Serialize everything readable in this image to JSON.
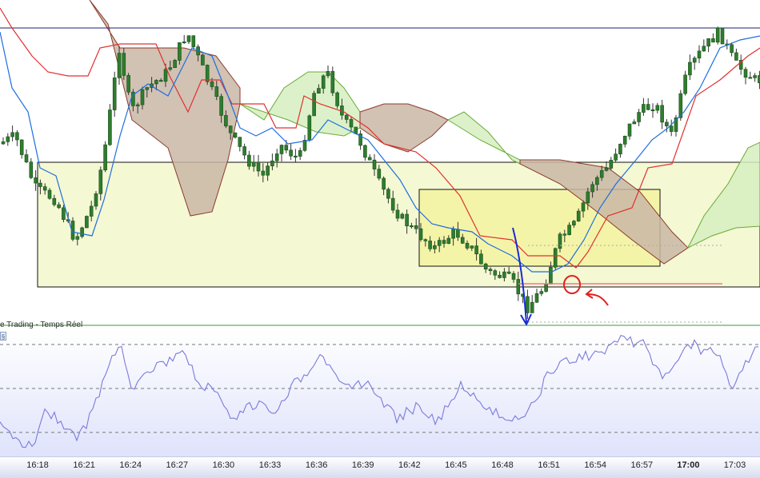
{
  "panel_title": "e Trading - Temps Réel",
  "chart_data": [
    {
      "type": "candlestick",
      "indicators": [
        "ichimoku tenkan (blue)",
        "ichimoku kijun (red)",
        "ichimoku cloud (green/brown)"
      ],
      "annotations": [
        "blue down arrow",
        "red circle",
        "red arrow",
        "horizontal pink line",
        "yellow rectangles"
      ],
      "colors": {
        "candle_body": "#2e7d2e",
        "candle_wick": "#333333",
        "tenkan": "#1e6ee0",
        "kijun": "#e23030",
        "cloud_bull": "#d6efc0",
        "cloud_bear": "#c9b7a6",
        "resistance_line": "#1c1c6e",
        "box_fill": "#f0f5c4"
      }
    },
    {
      "type": "line",
      "color": "#7a7adc",
      "grid": "dashed horizontal"
    }
  ],
  "time_axis": {
    "labels": [
      "16:18",
      "16:21",
      "16:24",
      "16:27",
      "16:30",
      "16:33",
      "16:36",
      "16:39",
      "16:42",
      "16:45",
      "16:48",
      "16:51",
      "16:54",
      "16:57",
      "17:00",
      "17:03"
    ],
    "bold_label": "17:00"
  }
}
